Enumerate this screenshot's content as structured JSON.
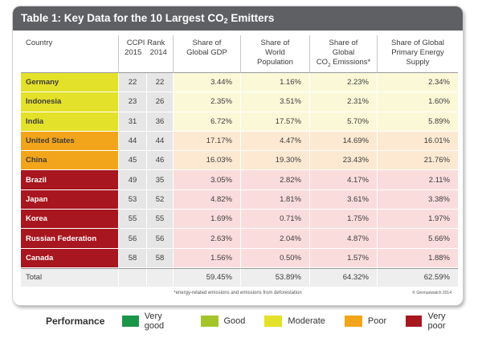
{
  "title": {
    "prefix": "Table 1: Key Data for the 10 Largest CO",
    "sub": "2",
    "suffix": " Emitters"
  },
  "headers": {
    "country": "Country",
    "ccpi_rank": "CCPI Rank",
    "year_2015": "2015",
    "year_2014": "2014",
    "gdp": [
      "Share of",
      "Global GDP"
    ],
    "population": [
      "Share of",
      "World",
      "Population"
    ],
    "emissions": [
      "Share of",
      "Global",
      "CO",
      "2",
      " Emissions*"
    ],
    "energy": [
      "Share of Global",
      "Primary Energy",
      "Supply"
    ]
  },
  "colors": {
    "very_good": "#1a9648",
    "good": "#a4c42a",
    "moderate": "#e4e12a",
    "poor": "#f2a41a",
    "very_poor": "#a8161f",
    "tint_moderate": "#fbf8d8",
    "tint_poor": "#fde9d2",
    "tint_very_poor": "#fbdcdc",
    "tint_total": "#eeeeee",
    "rank_bg": "#e6e6e6",
    "title_bg": "#5e6063"
  },
  "rows": [
    {
      "country": "Germany",
      "perf": "moderate",
      "r2015": "22",
      "r2014": "22",
      "gdp": "3.44%",
      "pop": "1.16%",
      "co2": "2.23%",
      "energy": "2.34%"
    },
    {
      "country": "Indonesia",
      "perf": "moderate",
      "r2015": "23",
      "r2014": "26",
      "gdp": "2.35%",
      "pop": "3.51%",
      "co2": "2.31%",
      "energy": "1.60%"
    },
    {
      "country": "India",
      "perf": "moderate",
      "r2015": "31",
      "r2014": "36",
      "gdp": "6.72%",
      "pop": "17.57%",
      "co2": "5.70%",
      "energy": "5.89%"
    },
    {
      "country": "United States",
      "perf": "poor",
      "r2015": "44",
      "r2014": "44",
      "gdp": "17.17%",
      "pop": "4.47%",
      "co2": "14.69%",
      "energy": "16.01%"
    },
    {
      "country": "China",
      "perf": "poor",
      "r2015": "45",
      "r2014": "46",
      "gdp": "16.03%",
      "pop": "19.30%",
      "co2": "23.43%",
      "energy": "21.76%"
    },
    {
      "country": "Brazil",
      "perf": "very_poor",
      "r2015": "49",
      "r2014": "35",
      "gdp": "3.05%",
      "pop": "2.82%",
      "co2": "4.17%",
      "energy": "2.11%"
    },
    {
      "country": "Japan",
      "perf": "very_poor",
      "r2015": "53",
      "r2014": "52",
      "gdp": "4.82%",
      "pop": "1.81%",
      "co2": "3.61%",
      "energy": "3.38%"
    },
    {
      "country": "Korea",
      "perf": "very_poor",
      "r2015": "55",
      "r2014": "55",
      "gdp": "1.69%",
      "pop": "0.71%",
      "co2": "1.75%",
      "energy": "1.97%"
    },
    {
      "country": "Russian Federation",
      "perf": "very_poor",
      "r2015": "56",
      "r2014": "56",
      "gdp": "2.63%",
      "pop": "2.04%",
      "co2": "4.87%",
      "energy": "5.66%"
    },
    {
      "country": "Canada",
      "perf": "very_poor",
      "r2015": "58",
      "r2014": "58",
      "gdp": "1.56%",
      "pop": "0.50%",
      "co2": "1.57%",
      "energy": "1.88%"
    }
  ],
  "total": {
    "label": "Total",
    "gdp": "59.45%",
    "pop": "53.89%",
    "co2": "64.32%",
    "energy": "62.59%"
  },
  "footnote": "*energy-related emissions and emissions from deforestation",
  "credit": "© Germanwatch 2014",
  "legend": {
    "title": "Performance",
    "items": [
      {
        "key": "very_good",
        "label": "Very good"
      },
      {
        "key": "good",
        "label": "Good"
      },
      {
        "key": "moderate",
        "label": "Moderate"
      },
      {
        "key": "poor",
        "label": "Poor"
      },
      {
        "key": "very_poor",
        "label": "Very poor"
      }
    ]
  }
}
